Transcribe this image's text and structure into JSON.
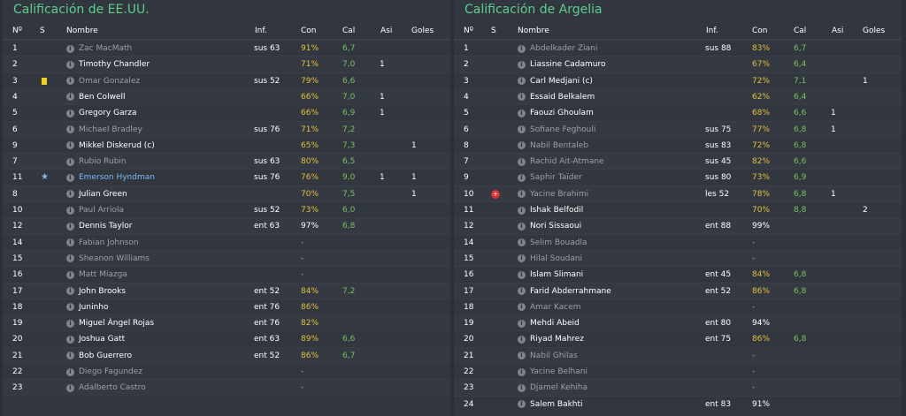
{
  "headers": {
    "no": "Nº",
    "s": "S",
    "name": "Nombre",
    "inf": "Inf.",
    "con": "Con",
    "cal": "Cal",
    "asi": "Asi",
    "goles": "Goles"
  },
  "teams": [
    {
      "title": "Calificación de EE.UU.",
      "players": [
        {
          "no": "1",
          "name": "Zac MacMath",
          "inf": "sus 63",
          "con": "91%",
          "cal": "6,7",
          "asi": "",
          "goles": "",
          "style": "sub",
          "con_color": "y"
        },
        {
          "no": "2",
          "name": "Timothy Chandler",
          "inf": "",
          "con": "71%",
          "cal": "7,0",
          "asi": "1",
          "goles": "",
          "style": "",
          "con_color": "y"
        },
        {
          "no": "3",
          "name": "Omar Gonzalez",
          "inf": "sus 52",
          "con": "79%",
          "cal": "6,6",
          "asi": "",
          "goles": "",
          "style": "sub",
          "con_color": "y",
          "status": "yellow-card"
        },
        {
          "no": "4",
          "name": "Ben Colwell",
          "inf": "",
          "con": "66%",
          "cal": "7,0",
          "asi": "1",
          "goles": "",
          "style": "",
          "con_color": "y"
        },
        {
          "no": "5",
          "name": "Gregory Garza",
          "inf": "",
          "con": "66%",
          "cal": "6,9",
          "asi": "1",
          "goles": "",
          "style": "",
          "con_color": "y"
        },
        {
          "no": "6",
          "name": "Michael Bradley",
          "inf": "sus 76",
          "con": "71%",
          "cal": "7,2",
          "asi": "",
          "goles": "",
          "style": "sub",
          "con_color": "y"
        },
        {
          "no": "9",
          "name": "Mikkel Diskerud (c)",
          "inf": "",
          "con": "65%",
          "cal": "7,3",
          "asi": "",
          "goles": "1",
          "style": "",
          "con_color": "y"
        },
        {
          "no": "7",
          "name": "Rubio Rubin",
          "inf": "sus 63",
          "con": "80%",
          "cal": "6,5",
          "asi": "",
          "goles": "",
          "style": "sub",
          "con_color": "y"
        },
        {
          "no": "11",
          "name": "Emerson Hyndman",
          "inf": "sus 76",
          "con": "76%",
          "cal": "9,0",
          "asi": "1",
          "goles": "1",
          "style": "starred",
          "con_color": "y",
          "status": "star"
        },
        {
          "no": "8",
          "name": "Julian Green",
          "inf": "",
          "con": "70%",
          "cal": "7,5",
          "asi": "",
          "goles": "1",
          "style": "",
          "con_color": "y"
        },
        {
          "no": "10",
          "name": "Paul Arriola",
          "inf": "sus 52",
          "con": "73%",
          "cal": "6,0",
          "asi": "",
          "goles": "",
          "style": "sub",
          "con_color": "y"
        },
        {
          "no": "12",
          "name": "Dennis Taylor",
          "inf": "ent 63",
          "con": "97%",
          "cal": "6,8",
          "asi": "",
          "goles": "",
          "style": "",
          "con_color": "w"
        },
        {
          "no": "14",
          "name": "Fabian Johnson",
          "inf": "",
          "con": "-",
          "cal": "",
          "asi": "",
          "goles": "",
          "style": "sub",
          "con_color": "d"
        },
        {
          "no": "15",
          "name": "Sheanon Williams",
          "inf": "",
          "con": "-",
          "cal": "",
          "asi": "",
          "goles": "",
          "style": "sub",
          "con_color": "d"
        },
        {
          "no": "16",
          "name": "Matt Miazga",
          "inf": "",
          "con": "-",
          "cal": "",
          "asi": "",
          "goles": "",
          "style": "sub",
          "con_color": "d"
        },
        {
          "no": "17",
          "name": "John Brooks",
          "inf": "ent 52",
          "con": "84%",
          "cal": "7,2",
          "asi": "",
          "goles": "",
          "style": "",
          "con_color": "y"
        },
        {
          "no": "18",
          "name": "Juninho",
          "inf": "ent 76",
          "con": "86%",
          "cal": "",
          "asi": "",
          "goles": "",
          "style": "",
          "con_color": "y"
        },
        {
          "no": "19",
          "name": "Miguel Ángel Rojas",
          "inf": "ent 76",
          "con": "82%",
          "cal": "",
          "asi": "",
          "goles": "",
          "style": "",
          "con_color": "y"
        },
        {
          "no": "20",
          "name": "Joshua Gatt",
          "inf": "ent 63",
          "con": "89%",
          "cal": "6,6",
          "asi": "",
          "goles": "",
          "style": "",
          "con_color": "y"
        },
        {
          "no": "21",
          "name": "Bob Guerrero",
          "inf": "ent 52",
          "con": "86%",
          "cal": "6,7",
          "asi": "",
          "goles": "",
          "style": "",
          "con_color": "y"
        },
        {
          "no": "22",
          "name": "Diego Fagundez",
          "inf": "",
          "con": "-",
          "cal": "",
          "asi": "",
          "goles": "",
          "style": "sub",
          "con_color": "d"
        },
        {
          "no": "23",
          "name": "Adalberto Castro",
          "inf": "",
          "con": "-",
          "cal": "",
          "asi": "",
          "goles": "",
          "style": "sub",
          "con_color": "d"
        }
      ]
    },
    {
      "title": "Calificación de Argelia",
      "players": [
        {
          "no": "1",
          "name": "Abdelkader Ziani",
          "inf": "sus 88",
          "con": "83%",
          "cal": "6,7",
          "asi": "",
          "goles": "",
          "style": "sub",
          "con_color": "y"
        },
        {
          "no": "2",
          "name": "Liassine Cadamuro",
          "inf": "",
          "con": "67%",
          "cal": "6,4",
          "asi": "",
          "goles": "",
          "style": "",
          "con_color": "y"
        },
        {
          "no": "3",
          "name": "Carl Medjani (c)",
          "inf": "",
          "con": "72%",
          "cal": "7,1",
          "asi": "",
          "goles": "1",
          "style": "",
          "con_color": "y"
        },
        {
          "no": "4",
          "name": "Essaid Belkalem",
          "inf": "",
          "con": "62%",
          "cal": "6,4",
          "asi": "",
          "goles": "",
          "style": "",
          "con_color": "y"
        },
        {
          "no": "5",
          "name": "Faouzi Ghoulam",
          "inf": "",
          "con": "68%",
          "cal": "6,6",
          "asi": "1",
          "goles": "",
          "style": "",
          "con_color": "y"
        },
        {
          "no": "6",
          "name": "Sofiane Feghouli",
          "inf": "sus 75",
          "con": "77%",
          "cal": "6,8",
          "asi": "1",
          "goles": "",
          "style": "sub",
          "con_color": "y"
        },
        {
          "no": "8",
          "name": "Nabil Bentaleb",
          "inf": "sus 83",
          "con": "72%",
          "cal": "6,8",
          "asi": "",
          "goles": "",
          "style": "sub",
          "con_color": "y"
        },
        {
          "no": "7",
          "name": "Rachid Ait-Atmane",
          "inf": "sus 45",
          "con": "82%",
          "cal": "6,6",
          "asi": "",
          "goles": "",
          "style": "sub",
          "con_color": "y"
        },
        {
          "no": "9",
          "name": "Saphir Taïder",
          "inf": "sus 80",
          "con": "73%",
          "cal": "6,9",
          "asi": "",
          "goles": "",
          "style": "sub",
          "con_color": "y"
        },
        {
          "no": "10",
          "name": "Yacine Brahimi",
          "inf": "les 52",
          "con": "78%",
          "cal": "6,8",
          "asi": "1",
          "goles": "",
          "style": "sub",
          "con_color": "y",
          "status": "injury"
        },
        {
          "no": "11",
          "name": "Ishak Belfodil",
          "inf": "",
          "con": "70%",
          "cal": "8,8",
          "asi": "",
          "goles": "2",
          "style": "",
          "con_color": "y"
        },
        {
          "no": "12",
          "name": "Nori Sissaoui",
          "inf": "ent 88",
          "con": "99%",
          "cal": "",
          "asi": "",
          "goles": "",
          "style": "",
          "con_color": "w"
        },
        {
          "no": "14",
          "name": "Selim Bouadla",
          "inf": "",
          "con": "-",
          "cal": "",
          "asi": "",
          "goles": "",
          "style": "sub",
          "con_color": "d"
        },
        {
          "no": "15",
          "name": "Hilal Soudani",
          "inf": "",
          "con": "-",
          "cal": "",
          "asi": "",
          "goles": "",
          "style": "sub",
          "con_color": "d"
        },
        {
          "no": "16",
          "name": "Islam Slimani",
          "inf": "ent 45",
          "con": "84%",
          "cal": "6,8",
          "asi": "",
          "goles": "",
          "style": "",
          "con_color": "y"
        },
        {
          "no": "17",
          "name": "Farid Abderrahmane",
          "inf": "ent 52",
          "con": "86%",
          "cal": "6,8",
          "asi": "",
          "goles": "",
          "style": "",
          "con_color": "y"
        },
        {
          "no": "18",
          "name": "Amar Kacem",
          "inf": "",
          "con": "-",
          "cal": "",
          "asi": "",
          "goles": "",
          "style": "sub",
          "con_color": "d"
        },
        {
          "no": "19",
          "name": "Mehdi Abeid",
          "inf": "ent 80",
          "con": "94%",
          "cal": "",
          "asi": "",
          "goles": "",
          "style": "",
          "con_color": "w"
        },
        {
          "no": "20",
          "name": "Riyad Mahrez",
          "inf": "ent 75",
          "con": "86%",
          "cal": "6,8",
          "asi": "",
          "goles": "",
          "style": "",
          "con_color": "y"
        },
        {
          "no": "21",
          "name": "Nabil Ghilas",
          "inf": "",
          "con": "-",
          "cal": "",
          "asi": "",
          "goles": "",
          "style": "sub",
          "con_color": "d"
        },
        {
          "no": "22",
          "name": "Yacine Belhani",
          "inf": "",
          "con": "-",
          "cal": "",
          "asi": "",
          "goles": "",
          "style": "sub",
          "con_color": "d"
        },
        {
          "no": "23",
          "name": "Djamel Kehiha",
          "inf": "",
          "con": "-",
          "cal": "",
          "asi": "",
          "goles": "",
          "style": "sub",
          "con_color": "d"
        },
        {
          "no": "24",
          "name": "Salem Bakhti",
          "inf": "ent 83",
          "con": "91%",
          "cal": "",
          "asi": "",
          "goles": "",
          "style": "",
          "con_color": "w"
        }
      ]
    }
  ]
}
